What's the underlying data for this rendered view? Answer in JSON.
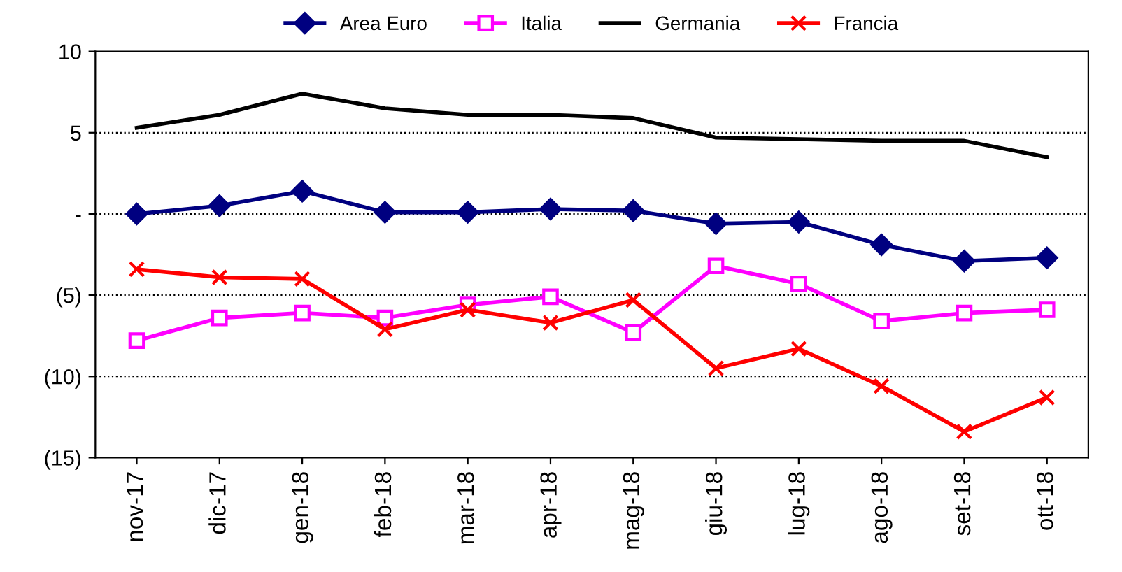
{
  "chart_data": {
    "type": "line",
    "categories": [
      "nov-17",
      "dic-17",
      "gen-18",
      "feb-18",
      "mar-18",
      "apr-18",
      "mag-18",
      "giu-18",
      "lug-18",
      "ago-18",
      "set-18",
      "ott-18"
    ],
    "series": [
      {
        "name": "Area Euro",
        "color": "#000080",
        "marker": "diamond",
        "values": [
          0.0,
          0.5,
          1.4,
          0.1,
          0.1,
          0.3,
          0.2,
          -0.6,
          -0.5,
          -1.9,
          -2.9,
          -2.7
        ]
      },
      {
        "name": "Italia",
        "color": "#ff00ff",
        "marker": "square",
        "values": [
          -7.8,
          -6.4,
          -6.1,
          -6.4,
          -5.6,
          -5.1,
          -7.3,
          -3.2,
          -4.3,
          -6.6,
          -6.1,
          -5.9
        ]
      },
      {
        "name": "Germania",
        "color": "#000000",
        "marker": "none",
        "values": [
          5.3,
          6.1,
          7.4,
          6.5,
          6.1,
          6.1,
          5.9,
          4.7,
          4.6,
          4.5,
          4.5,
          3.5
        ]
      },
      {
        "name": "Francia",
        "color": "#ff0000",
        "marker": "cross",
        "values": [
          -3.4,
          -3.9,
          -4.0,
          -7.1,
          -5.9,
          -6.7,
          -5.3,
          -9.5,
          -8.3,
          -10.6,
          -13.4,
          -11.3
        ]
      }
    ],
    "ylim": [
      -15,
      10
    ],
    "yticks": [
      {
        "value": -15,
        "label": "(15)"
      },
      {
        "value": -10,
        "label": "(10)"
      },
      {
        "value": -5,
        "label": "(5)"
      },
      {
        "value": 0,
        "label": "-"
      },
      5,
      10
    ],
    "grid": "y",
    "legend": "top",
    "line_style": "solid"
  }
}
